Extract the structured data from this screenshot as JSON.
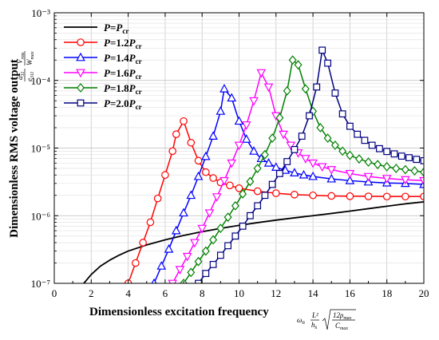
{
  "chart_data": {
    "type": "line",
    "title": "",
    "xlabel": "Dimensionless excitation frequency",
    "ylabel": "Dimensionless RMS voltage output",
    "x_annotation": "ωn (L²/hs) √(12ρmax / Cmax)",
    "y_annotation": "(a31 / e311) (Vrms / Wmax)",
    "xlim": [
      0,
      20
    ],
    "ylim": [
      1e-07,
      0.001
    ],
    "yscale": "log",
    "grid": true,
    "legend_position": "top-left",
    "x_ticks": [
      "0",
      "2",
      "4",
      "6",
      "8",
      "10",
      "12",
      "14",
      "16",
      "18",
      "20"
    ],
    "y_ticks": [
      "10⁻⁷",
      "10⁻⁶",
      "10⁻⁵",
      "10⁻⁴",
      "10⁻³"
    ],
    "series": [
      {
        "name": "P=Pcr",
        "legend_label": {
          "prefix": "P",
          "eq": "=",
          "main": "P",
          "sub": "cr"
        },
        "color": "#000000",
        "marker": "none",
        "x": [
          1.6,
          2,
          2.5,
          3,
          3.5,
          4,
          5,
          6,
          7,
          8,
          9,
          10,
          11,
          12,
          13,
          14,
          15,
          16,
          17,
          18,
          19,
          20
        ],
        "y": [
          1e-07,
          1.35e-07,
          1.8e-07,
          2.2e-07,
          2.6e-07,
          3e-07,
          3.7e-07,
          4.4e-07,
          5.1e-07,
          5.8e-07,
          6.5e-07,
          7.2e-07,
          7.9e-07,
          8.6e-07,
          9.3e-07,
          1e-06,
          1.08e-06,
          1.17e-06,
          1.27e-06,
          1.38e-06,
          1.5e-06,
          1.6e-06
        ]
      },
      {
        "name": "P=1.2Pcr",
        "legend_label": {
          "prefix": "P",
          "eq": "=1.2",
          "main": "P",
          "sub": "cr"
        },
        "color": "#ff0000",
        "marker": "circle",
        "x": [
          4.0,
          4.4,
          4.8,
          5.2,
          5.6,
          6.0,
          6.4,
          6.6,
          7.0,
          7.4,
          7.8,
          8.2,
          8.6,
          9.0,
          9.5,
          10.0,
          11,
          12,
          13,
          14,
          15,
          16,
          17,
          18,
          19,
          20
        ],
        "y": [
          1e-07,
          2e-07,
          4e-07,
          8e-07,
          1.8e-06,
          4e-06,
          9e-06,
          1.6e-05,
          2.5e-05,
          1.2e-05,
          6.5e-06,
          4.4e-06,
          3.6e-06,
          3.1e-06,
          2.8e-06,
          2.55e-06,
          2.3e-06,
          2.15e-06,
          2.05e-06,
          2e-06,
          1.96e-06,
          1.94e-06,
          1.93e-06,
          1.92e-06,
          1.92e-06,
          1.92e-06
        ]
      },
      {
        "name": "P=1.4Pcr",
        "legend_label": {
          "prefix": "P",
          "eq": "=1.4",
          "main": "P",
          "sub": "cr"
        },
        "color": "#0000ff",
        "marker": "triangle-up",
        "x": [
          5.4,
          5.8,
          6.2,
          6.6,
          7.0,
          7.4,
          7.8,
          8.2,
          8.6,
          9.0,
          9.2,
          9.6,
          10.0,
          10.4,
          10.8,
          11.2,
          11.6,
          12.0,
          12.5,
          13.0,
          13.5,
          14,
          15,
          16,
          17,
          18,
          19,
          20
        ],
        "y": [
          1e-07,
          1.8e-07,
          3.2e-07,
          6e-07,
          1.1e-06,
          2e-06,
          3.8e-06,
          7.5e-06,
          1.5e-05,
          3.5e-05,
          7.5e-05,
          5.5e-05,
          2.5e-05,
          1.35e-05,
          9e-06,
          7e-06,
          6e-06,
          5.2e-06,
          4.7e-06,
          4.3e-06,
          4e-06,
          3.8e-06,
          3.5e-06,
          3.3e-06,
          3.15e-06,
          3.05e-06,
          3e-06,
          2.9e-06
        ]
      },
      {
        "name": "P=1.6Pcr",
        "legend_label": {
          "prefix": "P",
          "eq": "=1.6",
          "main": "P",
          "sub": "cr"
        },
        "color": "#ff00ff",
        "marker": "triangle-down",
        "x": [
          6.4,
          6.8,
          7.2,
          7.6,
          8.0,
          8.4,
          8.8,
          9.2,
          9.6,
          10.0,
          10.4,
          10.8,
          11.2,
          11.6,
          12.0,
          12.4,
          12.8,
          13.2,
          13.6,
          14.0,
          14.5,
          15,
          16,
          17,
          18,
          19,
          20
        ],
        "y": [
          1e-07,
          1.6e-07,
          2.5e-07,
          4e-07,
          6.5e-07,
          1.1e-06,
          1.9e-06,
          3.3e-06,
          6e-06,
          1.1e-05,
          2.2e-05,
          5e-05,
          0.00013,
          8e-05,
          3e-05,
          1.6e-05,
          1.1e-05,
          8.5e-06,
          7e-06,
          6e-06,
          5.3e-06,
          4.8e-06,
          4.2e-06,
          3.8e-06,
          3.55e-06,
          3.4e-06,
          3.3e-06
        ]
      },
      {
        "name": "P=1.8Pcr",
        "legend_label": {
          "prefix": "P",
          "eq": "=1.8",
          "main": "P",
          "sub": "cr"
        },
        "color": "#008000",
        "marker": "diamond",
        "x": [
          7.0,
          7.4,
          7.8,
          8.2,
          8.6,
          9.0,
          9.4,
          9.8,
          10.2,
          10.6,
          11.0,
          11.4,
          11.8,
          12.2,
          12.6,
          12.9,
          13.2,
          13.6,
          14.0,
          14.4,
          14.8,
          15.2,
          15.6,
          16,
          16.5,
          17,
          17.5,
          18,
          18.5,
          19,
          19.5,
          20
        ],
        "y": [
          1e-07,
          1.45e-07,
          2.1e-07,
          3e-07,
          4.4e-07,
          6.5e-07,
          9.5e-07,
          1.4e-06,
          2.1e-06,
          3.2e-06,
          5e-06,
          8e-06,
          1.4e-05,
          2.8e-05,
          7e-05,
          0.0002,
          0.00017,
          7.5e-05,
          3.5e-05,
          2e-05,
          1.4e-05,
          1.1e-05,
          9e-06,
          7.8e-06,
          6.9e-06,
          6.2e-06,
          5.7e-06,
          5.3e-06,
          5e-06,
          4.8e-06,
          4.6e-06,
          4.4e-06
        ]
      },
      {
        "name": "P=2.0Pcr",
        "legend_label": {
          "prefix": "P",
          "eq": "=2.0",
          "main": "P",
          "sub": "cr"
        },
        "color": "#000080",
        "marker": "square",
        "x": [
          7.8,
          8.2,
          8.6,
          9.0,
          9.4,
          9.8,
          10.2,
          10.6,
          11.0,
          11.4,
          11.8,
          12.2,
          12.6,
          13.0,
          13.4,
          13.8,
          14.2,
          14.5,
          14.8,
          15.2,
          15.6,
          16.0,
          16.4,
          16.8,
          17.2,
          17.6,
          18.0,
          18.4,
          18.8,
          19.2,
          19.6,
          20
        ],
        "y": [
          1e-07,
          1.4e-07,
          1.9e-07,
          2.6e-07,
          3.6e-07,
          5e-07,
          7e-07,
          1e-06,
          1.4e-06,
          2e-06,
          2.9e-06,
          4.2e-06,
          6.3e-06,
          9.5e-06,
          1.5e-05,
          3e-05,
          8e-05,
          0.00028,
          0.00018,
          6.5e-05,
          3.2e-05,
          2.1e-05,
          1.6e-05,
          1.3e-05,
          1.1e-05,
          9.8e-06,
          8.9e-06,
          8.2e-06,
          7.6e-06,
          7.2e-06,
          6.8e-06,
          6.5e-06
        ]
      }
    ]
  }
}
